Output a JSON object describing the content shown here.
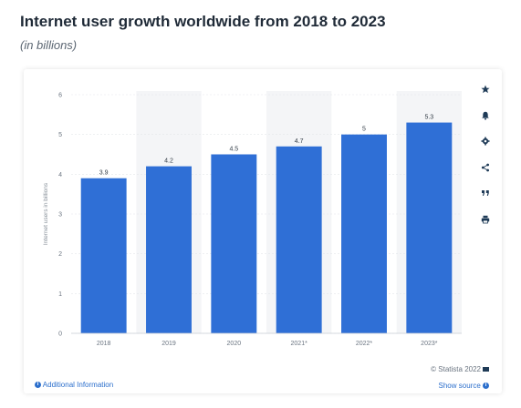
{
  "header": {
    "title": "Internet user growth worldwide from 2018 to 2023",
    "subtitle": "(in billions)"
  },
  "chart_data": {
    "type": "bar",
    "categories": [
      "2018",
      "2019",
      "2020",
      "2021*",
      "2022*",
      "2023*"
    ],
    "values": [
      3.9,
      4.2,
      4.5,
      4.7,
      5,
      5.3
    ],
    "value_labels": [
      "3.9",
      "4.2",
      "4.5",
      "4.7",
      "5",
      "5.3"
    ],
    "ylabel": "Internet users in billions",
    "ylim": [
      0,
      6
    ],
    "yticks": [
      "0",
      "1",
      "2",
      "3",
      "4",
      "5",
      "6"
    ],
    "bar_color": "#2f6fd6",
    "alternating_band_color": "#f4f5f7",
    "grid": true
  },
  "toolbar": {
    "icons": [
      "star-icon",
      "bell-icon",
      "gear-icon",
      "share-icon",
      "quote-icon",
      "print-icon"
    ]
  },
  "footer": {
    "copyright": "© Statista 2022",
    "additional_info": "Additional Information",
    "show_source": "Show source"
  }
}
